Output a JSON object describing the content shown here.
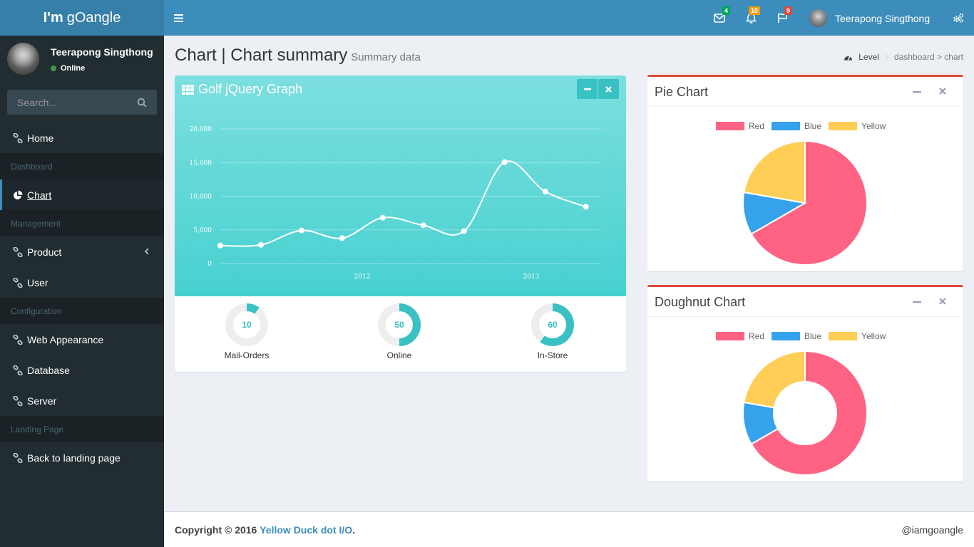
{
  "app": {
    "logo_prefix": "I'm",
    "logo_name": "gOangle"
  },
  "user": {
    "name": "Teerapong Singthong",
    "status": "Online"
  },
  "search": {
    "placeholder": "Search..."
  },
  "sidebar": {
    "items": [
      {
        "label": "Home"
      },
      {
        "header": "Dashboard"
      },
      {
        "label": "Chart"
      },
      {
        "header": "Management"
      },
      {
        "label": "Product"
      },
      {
        "label": "User"
      },
      {
        "header": "Configuration"
      },
      {
        "label": "Web Appearance"
      },
      {
        "label": "Database"
      },
      {
        "label": "Server"
      },
      {
        "header": "Landing Page"
      },
      {
        "label": "Back to landing page"
      }
    ]
  },
  "topbar": {
    "messages_count": "4",
    "notifications_count": "10",
    "tasks_count": "9",
    "user_name": "Teerapong Singthong",
    "colors": {
      "bar": "#3c8dbc",
      "messages_badge": "#00a65a",
      "notifications_badge": "#f39c12",
      "tasks_badge": "#dd4b39"
    }
  },
  "page": {
    "title": "Chart | Chart summary",
    "subtitle": "Summary data"
  },
  "breadcrumb": {
    "level": "Level",
    "path": "dashboard > chart"
  },
  "golf": {
    "title": "Golf jQuery Graph",
    "knobs": [
      {
        "value": 10,
        "label": "Mail-Orders"
      },
      {
        "value": 50,
        "label": "Online"
      },
      {
        "value": 60,
        "label": "In-Store"
      }
    ]
  },
  "pie_box": {
    "title": "Pie Chart"
  },
  "doughnut_box": {
    "title": "Doughnut Chart"
  },
  "footer": {
    "copyright": "Copyright © 2016",
    "company": "Yellow Duck dot I/O",
    "handle": "@iamgoangle"
  },
  "chart_data": [
    {
      "type": "line",
      "yticks": [
        "20,000",
        "15,000",
        "10,000",
        "5,000",
        "0"
      ],
      "xticks": [
        "2012",
        "2013"
      ],
      "ylim": [
        0,
        20000
      ],
      "series": [
        {
          "values": [
            2666,
            2778,
            4912,
            3767,
            6810,
            5670,
            4820,
            15073,
            10687,
            8432
          ]
        }
      ]
    },
    {
      "type": "pie",
      "categories": [
        "Red",
        "Blue",
        "Yellow"
      ],
      "values": [
        300,
        50,
        100
      ],
      "colors": [
        "#ff6384",
        "#36a2eb",
        "#ffce56"
      ]
    },
    {
      "type": "pie",
      "categories": [
        "Red",
        "Blue",
        "Yellow"
      ],
      "values": [
        300,
        50,
        100
      ],
      "colors": [
        "#ff6384",
        "#36a2eb",
        "#ffce56"
      ]
    }
  ]
}
